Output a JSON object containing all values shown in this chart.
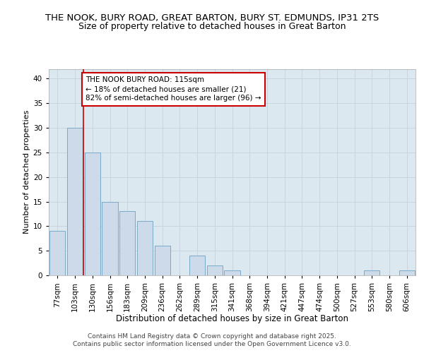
{
  "title1": "THE NOOK, BURY ROAD, GREAT BARTON, BURY ST. EDMUNDS, IP31 2TS",
  "title2": "Size of property relative to detached houses in Great Barton",
  "xlabel": "Distribution of detached houses by size in Great Barton",
  "ylabel": "Number of detached properties",
  "categories": [
    "77sqm",
    "103sqm",
    "130sqm",
    "156sqm",
    "183sqm",
    "209sqm",
    "236sqm",
    "262sqm",
    "289sqm",
    "315sqm",
    "341sqm",
    "368sqm",
    "394sqm",
    "421sqm",
    "447sqm",
    "474sqm",
    "500sqm",
    "527sqm",
    "553sqm",
    "580sqm",
    "606sqm"
  ],
  "values": [
    9,
    30,
    25,
    15,
    13,
    11,
    6,
    0,
    4,
    2,
    1,
    0,
    0,
    0,
    0,
    0,
    0,
    0,
    1,
    0,
    1
  ],
  "bar_color": "#ccdaea",
  "bar_edge_color": "#7aaac8",
  "annotation_box_text": "THE NOOK BURY ROAD: 115sqm\n← 18% of detached houses are smaller (21)\n82% of semi-detached houses are larger (96) →",
  "annotation_box_color": "#ffffff",
  "annotation_box_edge_color": "#cc0000",
  "red_line_x": 1.5,
  "red_line_color": "#cc0000",
  "ylim": [
    0,
    42
  ],
  "yticks": [
    0,
    5,
    10,
    15,
    20,
    25,
    30,
    35,
    40
  ],
  "grid_color": "#c8d0dc",
  "bg_color": "#dce8f0",
  "footer_text": "Contains HM Land Registry data © Crown copyright and database right 2025.\nContains public sector information licensed under the Open Government Licence v3.0.",
  "title1_fontsize": 9.5,
  "title2_fontsize": 9,
  "xlabel_fontsize": 8.5,
  "ylabel_fontsize": 8,
  "tick_fontsize": 7.5,
  "annotation_fontsize": 7.5,
  "footer_fontsize": 6.5
}
